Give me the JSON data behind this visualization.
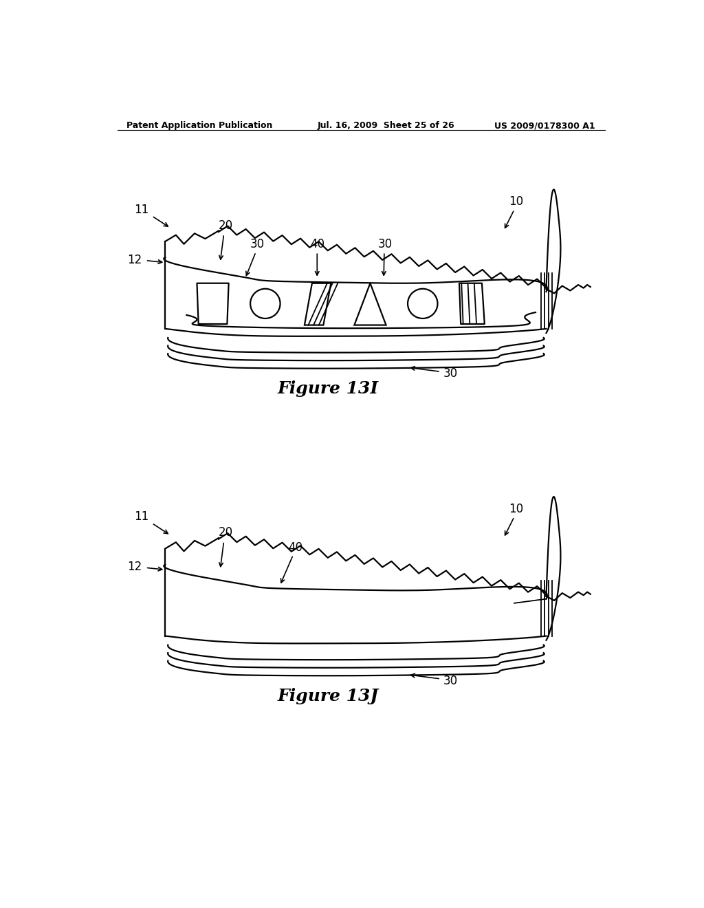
{
  "bg_color": "#ffffff",
  "line_color": "#000000",
  "header_left": "Patent Application Publication",
  "header_mid": "Jul. 16, 2009  Sheet 25 of 26",
  "header_right": "US 2009/0178300 A1",
  "fig1_title": "Figure 13I",
  "fig2_title": "Figure 13J",
  "header_fontsize": 9,
  "title_fontsize": 18,
  "label_fontsize": 12
}
